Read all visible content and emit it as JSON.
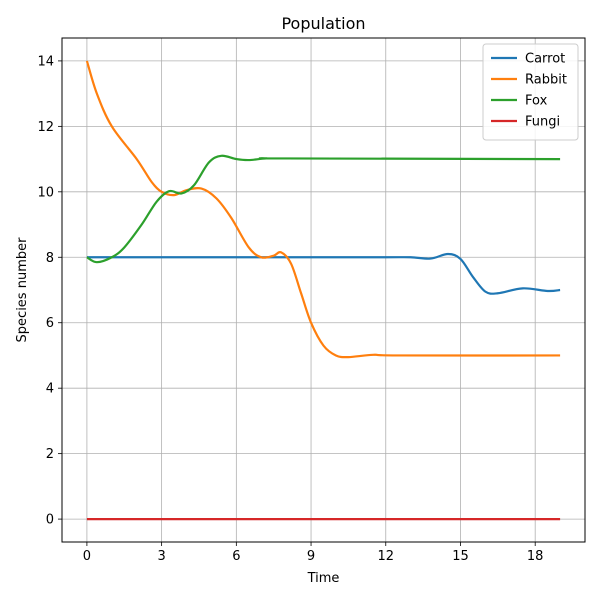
{
  "chart_data": {
    "type": "line",
    "title": "Population",
    "xlabel": "Time",
    "ylabel": "Species number",
    "xlim": [
      -1.0,
      20.0
    ],
    "ylim": [
      -0.7,
      14.7
    ],
    "x_ticks": [
      0,
      3,
      6,
      9,
      12,
      15,
      18
    ],
    "y_ticks": [
      0,
      2,
      4,
      6,
      8,
      10,
      12,
      14
    ],
    "grid": true,
    "legend_position": "top-right",
    "series": [
      {
        "name": "Carrot",
        "color": "#1f77b4",
        "points": [
          [
            0,
            8
          ],
          [
            3,
            8
          ],
          [
            6,
            8
          ],
          [
            9,
            8
          ],
          [
            12,
            8
          ],
          [
            13,
            8.0
          ],
          [
            13.8,
            7.96
          ],
          [
            14.5,
            8.1
          ],
          [
            15,
            7.95
          ],
          [
            15.5,
            7.4
          ],
          [
            16,
            6.95
          ],
          [
            16.5,
            6.9
          ],
          [
            17.5,
            7.05
          ],
          [
            18.5,
            6.97
          ],
          [
            19,
            7.0
          ]
        ]
      },
      {
        "name": "Rabbit",
        "color": "#ff7f0e",
        "points": [
          [
            0,
            14
          ],
          [
            0.4,
            13.0
          ],
          [
            1,
            12.0
          ],
          [
            2,
            11.0
          ],
          [
            2.6,
            10.3
          ],
          [
            3.0,
            10.0
          ],
          [
            3.5,
            9.9
          ],
          [
            4.0,
            10.05
          ],
          [
            4.6,
            10.1
          ],
          [
            5.2,
            9.8
          ],
          [
            5.8,
            9.2
          ],
          [
            6.5,
            8.3
          ],
          [
            7.0,
            8.0
          ],
          [
            7.5,
            8.05
          ],
          [
            7.8,
            8.15
          ],
          [
            8.2,
            7.8
          ],
          [
            8.6,
            6.9
          ],
          [
            9.0,
            6.0
          ],
          [
            9.5,
            5.3
          ],
          [
            10,
            5.0
          ],
          [
            10.5,
            4.95
          ],
          [
            11.5,
            5.02
          ],
          [
            12.5,
            5.0
          ],
          [
            19,
            5.0
          ]
        ]
      },
      {
        "name": "Fox",
        "color": "#2ca02c",
        "points": [
          [
            0,
            8
          ],
          [
            0.4,
            7.85
          ],
          [
            1,
            8.0
          ],
          [
            1.5,
            8.3
          ],
          [
            2.2,
            9.0
          ],
          [
            2.8,
            9.7
          ],
          [
            3.3,
            10.02
          ],
          [
            3.8,
            9.95
          ],
          [
            4.3,
            10.2
          ],
          [
            4.9,
            10.9
          ],
          [
            5.4,
            11.1
          ],
          [
            6.0,
            11.0
          ],
          [
            6.5,
            10.97
          ],
          [
            7.2,
            11.02
          ],
          [
            8,
            11.02
          ],
          [
            19,
            11.0
          ]
        ]
      },
      {
        "name": "Fungi",
        "color": "#d62728",
        "points": [
          [
            0,
            0
          ],
          [
            19,
            0
          ]
        ]
      }
    ]
  }
}
